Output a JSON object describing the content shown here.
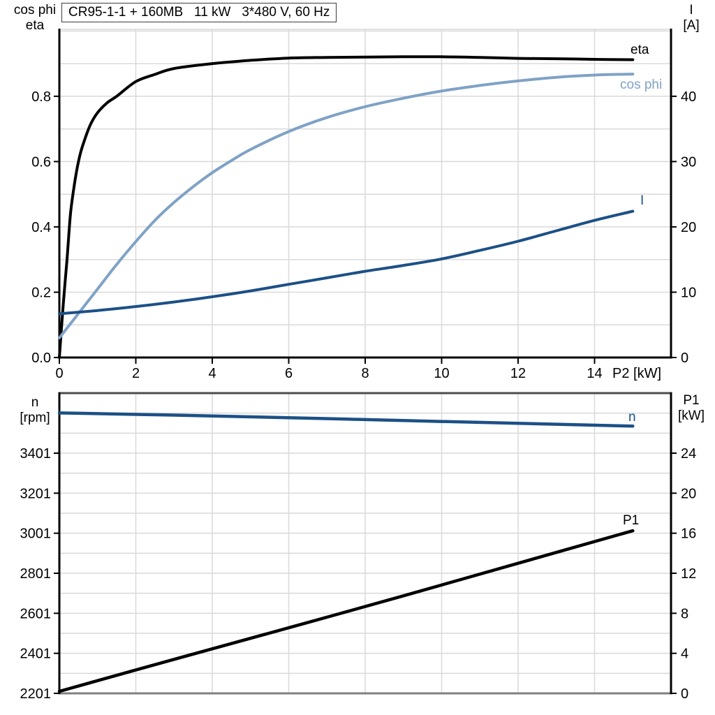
{
  "page": {
    "background": "#ffffff"
  },
  "colors": {
    "black": "#000000",
    "dark_blue": "#1c5086",
    "light_blue": "#7fa2c6",
    "grid": "#d9d9d9",
    "frame_dark": "#4d4d4d",
    "frame_gray": "#808080"
  },
  "axis_titles": {
    "top_left_1": "cos phi",
    "top_left_2": "eta",
    "top_right_1": "I",
    "top_right_2": "[A]",
    "bottom_left_1": "n",
    "bottom_left_2": "[rpm]",
    "bottom_right_1": "P1",
    "bottom_right_2": "[kW]",
    "x_axis": "P2 [kW]"
  },
  "chart_data": [
    {
      "type": "line",
      "title": "CR95-1-1 + 160MB   11 kW   3*480 V, 60 Hz",
      "xlabel": "P2 [kW]",
      "xlim": [
        0,
        16
      ],
      "x_tick_values": [
        0,
        2,
        4,
        6,
        8,
        10,
        12,
        14
      ],
      "x_tick_labels": [
        "0",
        "2",
        "4",
        "6",
        "8",
        "10",
        "12",
        "14"
      ],
      "grid": true,
      "legend_position": "inline-labels",
      "left_axis": {
        "title": "cos phi / eta",
        "lim": [
          0,
          1.005
        ],
        "minor_step": 0.1,
        "tick_values": [
          0,
          0.2,
          0.4,
          0.6,
          0.8
        ],
        "tick_labels": [
          "0.0",
          "0.2",
          "0.4",
          "0.6",
          "0.8"
        ]
      },
      "right_axis": {
        "title": "I [A]",
        "lim": [
          0,
          50.25
        ],
        "tick_values": [
          0,
          10,
          20,
          30,
          40
        ],
        "tick_labels": [
          "0",
          "10",
          "20",
          "30",
          "40"
        ]
      },
      "series": [
        {
          "name": "eta",
          "axis": "left",
          "color_key": "black",
          "x": [
            0,
            0.05,
            0.1,
            0.15,
            0.2,
            0.25,
            0.3,
            0.4,
            0.5,
            0.6,
            0.8,
            1,
            1.25,
            1.5,
            2,
            2.5,
            3,
            4,
            5,
            6,
            7,
            8,
            9,
            10,
            11,
            12,
            13,
            14,
            15
          ],
          "y": [
            0,
            0.08,
            0.16,
            0.23,
            0.3,
            0.38,
            0.45,
            0.535,
            0.6,
            0.645,
            0.71,
            0.75,
            0.78,
            0.8,
            0.845,
            0.867,
            0.885,
            0.9,
            0.91,
            0.917,
            0.919,
            0.92,
            0.921,
            0.921,
            0.919,
            0.916,
            0.915,
            0.913,
            0.912
          ]
        },
        {
          "name": "cos phi",
          "axis": "left",
          "color_key": "light_blue",
          "x": [
            0,
            0.5,
            1,
            1.5,
            2,
            2.5,
            3,
            3.5,
            4,
            4.5,
            5,
            6,
            7,
            8,
            9,
            10,
            11,
            12,
            13,
            14,
            15
          ],
          "y": [
            0.06,
            0.135,
            0.21,
            0.285,
            0.355,
            0.42,
            0.475,
            0.523,
            0.566,
            0.603,
            0.637,
            0.692,
            0.735,
            0.768,
            0.794,
            0.816,
            0.833,
            0.847,
            0.858,
            0.865,
            0.868
          ]
        },
        {
          "name": "I",
          "axis": "right",
          "color_key": "dark_blue",
          "x": [
            0,
            1,
            2,
            3,
            4,
            5,
            6,
            7,
            8,
            9,
            10,
            11,
            12,
            13,
            14,
            15
          ],
          "y": [
            6.7,
            7.2,
            7.8,
            8.5,
            9.3,
            10.2,
            11.2,
            12.2,
            13.2,
            14.1,
            15.1,
            16.4,
            17.8,
            19.4,
            21,
            22.4
          ]
        }
      ]
    },
    {
      "type": "line",
      "title": "",
      "xlabel": "",
      "xlim": [
        0,
        16
      ],
      "x_tick_values": [],
      "x_tick_labels": [],
      "grid": true,
      "legend_position": "inline-labels",
      "left_axis": {
        "title": "n [rpm]",
        "lim": [
          2201,
          3701
        ],
        "minor_step": 100,
        "tick_values": [
          2201,
          2401,
          2601,
          2801,
          3001,
          3201,
          3401
        ],
        "tick_labels": [
          "2201",
          "2401",
          "2601",
          "2801",
          "3001",
          "3201",
          "3401"
        ]
      },
      "right_axis": {
        "title": "P1 [kW]",
        "lim": [
          0,
          30
        ],
        "tick_values": [
          0,
          4,
          8,
          12,
          16,
          20,
          24
        ],
        "tick_labels": [
          "0",
          "4",
          "8",
          "12",
          "16",
          "20",
          "24"
        ]
      },
      "series": [
        {
          "name": "n",
          "axis": "left",
          "color_key": "dark_blue",
          "x": [
            0,
            3,
            6,
            9,
            12,
            15
          ],
          "y": [
            3602,
            3591,
            3578,
            3564,
            3550,
            3536
          ]
        },
        {
          "name": "P1",
          "axis": "right",
          "color_key": "black",
          "x": [
            0,
            3,
            6,
            9,
            12,
            15
          ],
          "y": [
            0.2,
            3.4,
            6.55,
            9.75,
            13,
            16.25
          ]
        }
      ]
    }
  ]
}
